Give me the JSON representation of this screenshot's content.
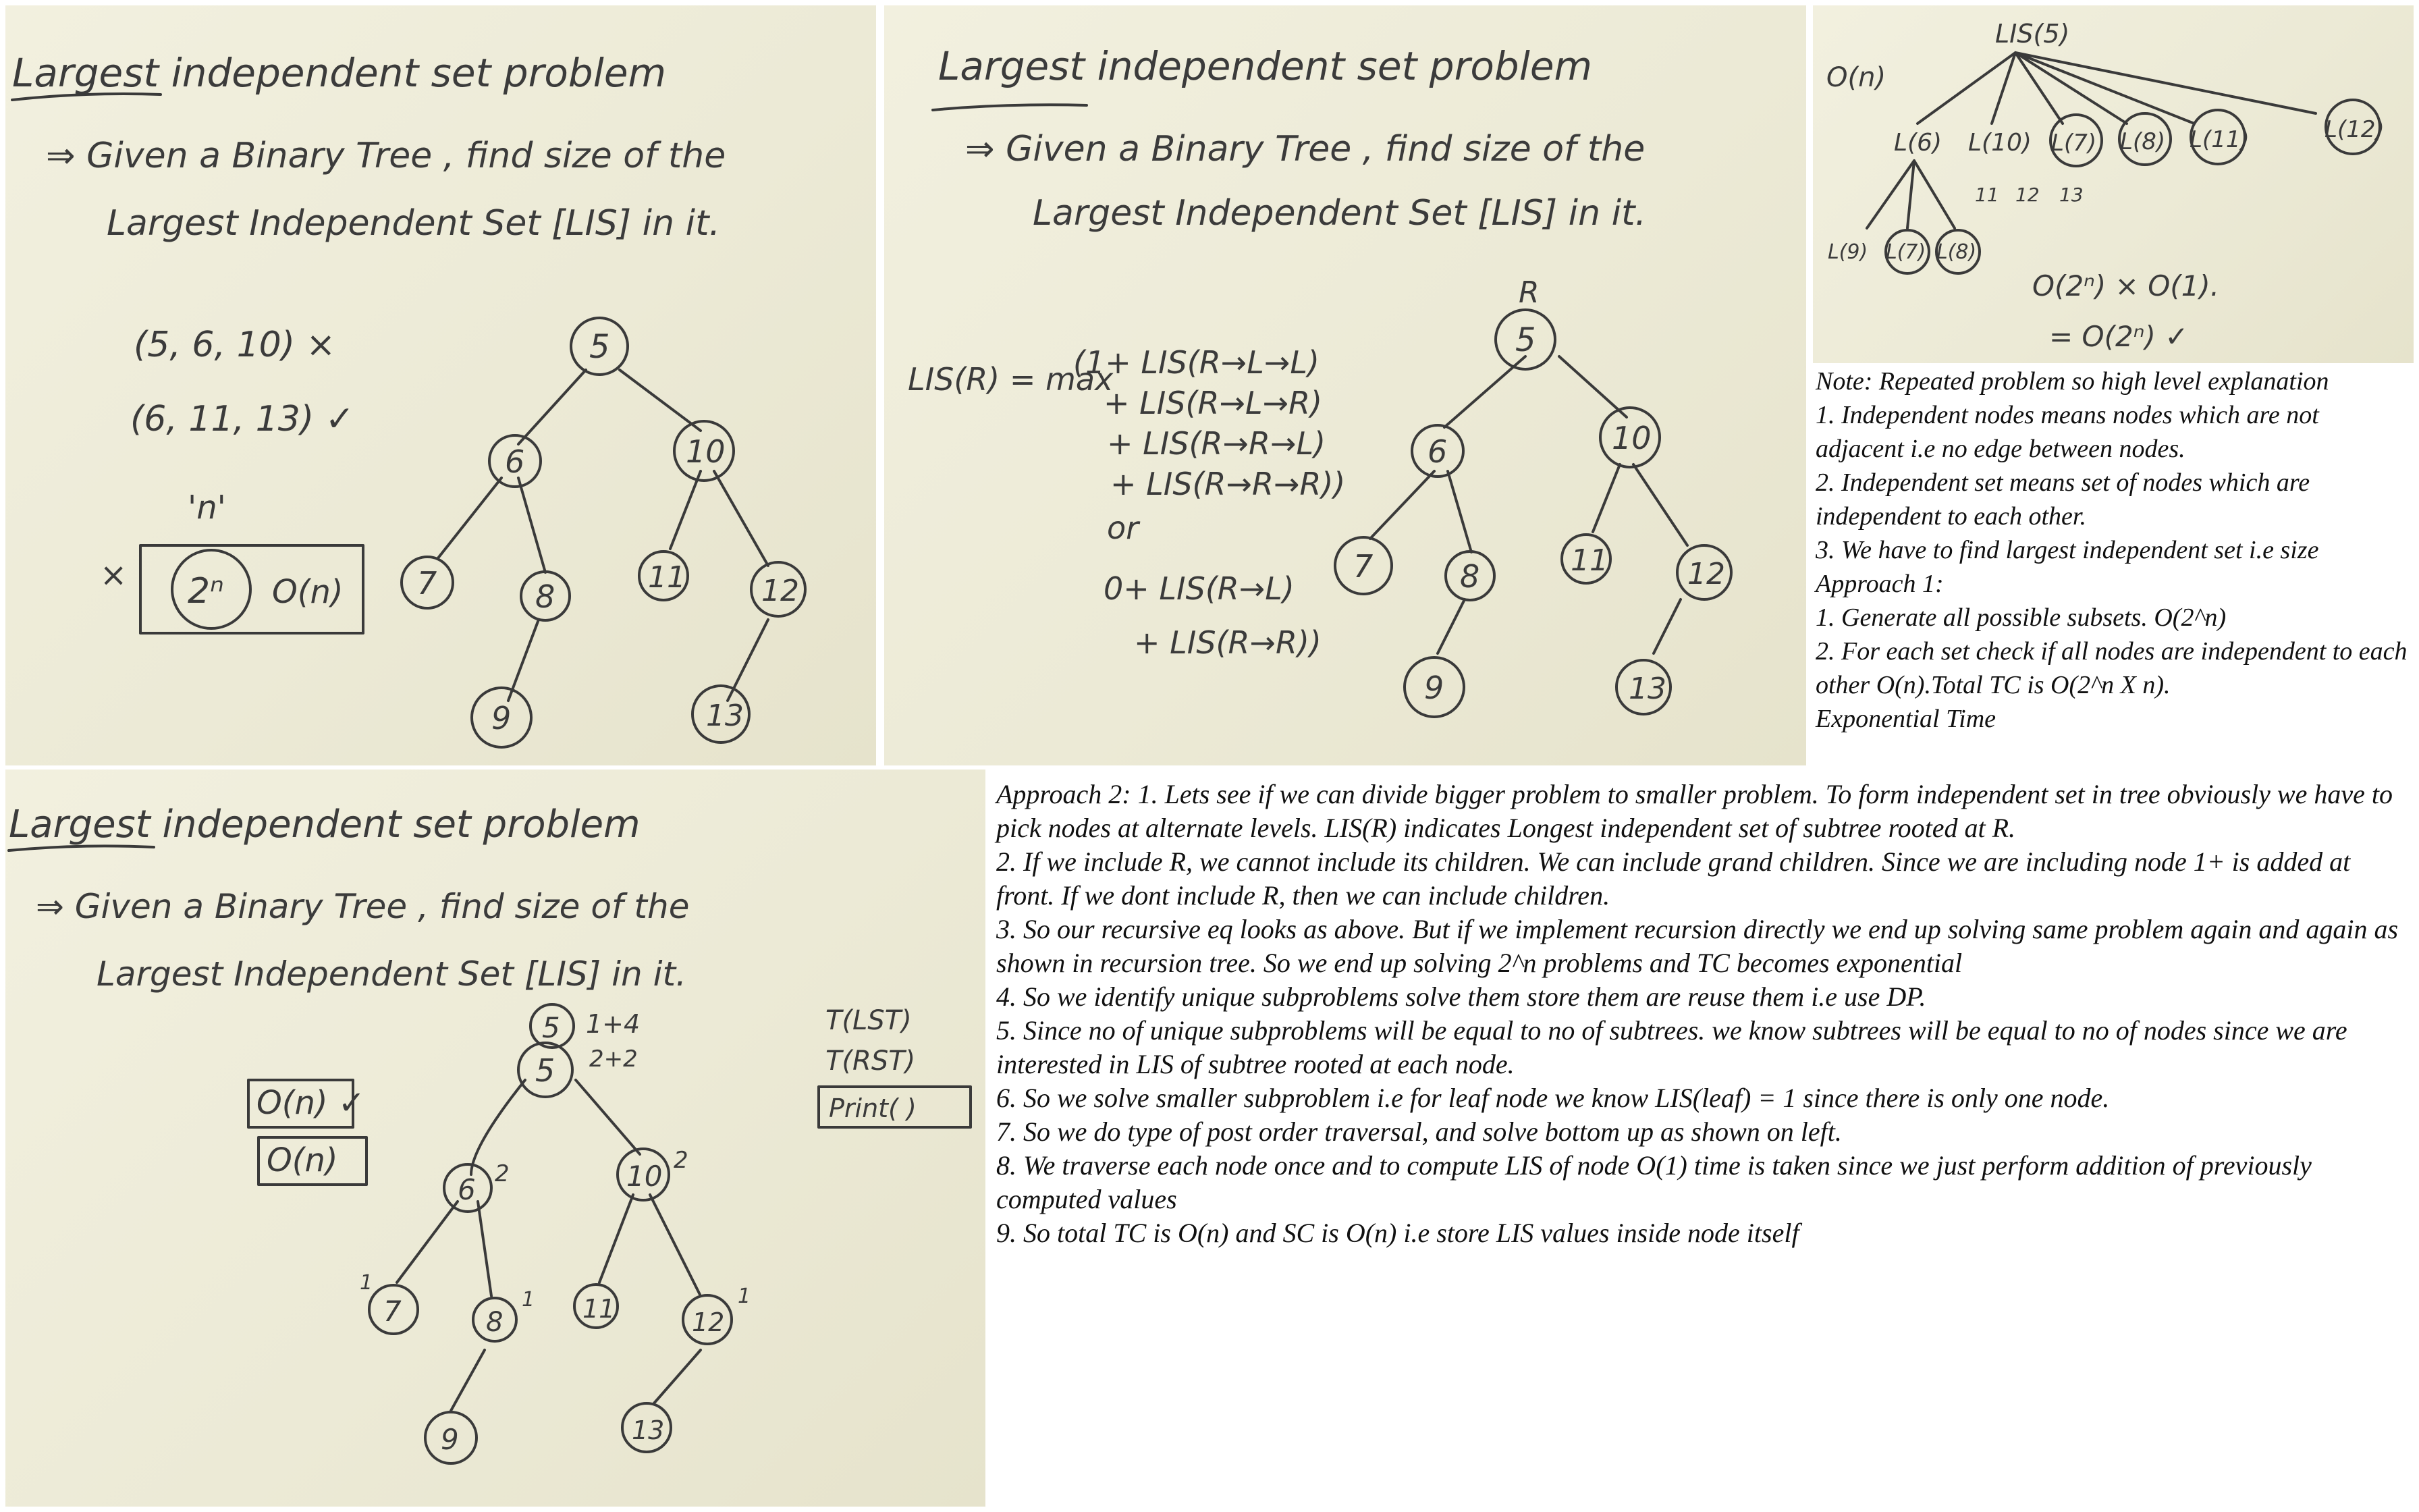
{
  "board": {
    "title": "Largest independent set problem",
    "line1": "⇒ Given a Binary Tree , find size of the",
    "line2": "Largest Independent Set [LIS] in it."
  },
  "panel1": {
    "set_a": "(5, 6, 10) ×",
    "set_b": "(6, 11, 13) ✓",
    "n_label": "'n'",
    "cx1": "2ⁿ",
    "cx2": "O(n)",
    "cross": "×",
    "tree_nodes": [
      "5",
      "6",
      "10",
      "7",
      "8",
      "11",
      "12",
      "9",
      "13"
    ]
  },
  "panel2": {
    "root_label": "R",
    "eq_lhs": "LIS(R) = max",
    "eq_lines": [
      "(1+ LIS(R→L→L)",
      "+ LIS(R→L→R)",
      "+ LIS(R→R→L)",
      "+ LIS(R→R→R))",
      "or",
      "0+ LIS(R→L)",
      "+ LIS(R→R))"
    ],
    "tree_nodes": [
      "5",
      "6",
      "10",
      "7",
      "8",
      "11",
      "12",
      "9",
      "13"
    ]
  },
  "panel3": {
    "root": "LIS(5)",
    "on": "O(n)",
    "children": [
      "L(6)",
      "L(10)",
      "L(7)",
      "L(8)",
      "L(11)",
      "L(12)"
    ],
    "grand": [
      "L(9)",
      "L(7)",
      "L(8)"
    ],
    "numbers": [
      "11",
      "12",
      "13"
    ],
    "cx1": "O(2ⁿ) × O(1).",
    "cx2": "= O(2ⁿ) ✓"
  },
  "panel4": {
    "cx1": "O(n) ✓",
    "cx2": "O(n)",
    "t1": "T(LST)",
    "t2": "T(RST)",
    "t3": "Print( )",
    "root_top": "5",
    "root_sum1": "1+4",
    "root_sum2": "2+2",
    "tree_nodes": [
      "5",
      "6",
      "10",
      "7",
      "8",
      "11",
      "12",
      "9",
      "13"
    ],
    "counts": [
      "2",
      "2",
      "1",
      "1",
      "1"
    ]
  },
  "note1": [
    "Note: Repeated problem so high level explanation",
    "1. Independent nodes means nodes which are not adjacent i.e no edge between nodes.",
    "2. Independent set means set of nodes which are independent to each other.",
    "3. We have to find largest independent set i.e size",
    "Approach 1:",
    "1. Generate all possible subsets. O(2^n)",
    "2. For each set check if all nodes are independent to each other O(n).Total TC is O(2^n X n).",
    "Exponential Time"
  ],
  "note2": [
    "Approach 2: 1. Lets see if we can divide bigger problem to smaller problem. To form independent set in tree obviously we have to pick nodes at alternate levels. LIS(R) indicates Longest independent set of subtree rooted at R.",
    "2. If we include R, we cannot include its children. We can include grand children. Since we are including node 1+ is added at front. If we dont include R, then we can include children.",
    "3. So our recursive eq looks as above. But if we implement recursion directly we end up solving same problem again and again as shown in recursion tree. So we end up solving 2^n problems and TC becomes exponential",
    "4. So we identify unique subproblems solve them store them are reuse them i.e use DP.",
    "5. Since no of unique subproblems will be equal to no of subtrees. we know subtrees will be equal to no of nodes since we are interested in LIS of subtree rooted at each node.",
    "6. So we solve smaller subproblem i.e for leaf node we know LIS(leaf) = 1 since there is only one node.",
    "7. So we do type of post order traversal, and solve bottom up as shown on left.",
    "8. We traverse each node once and to compute LIS of node O(1) time is taken since we just perform addition of previously computed values",
    "9. So total TC is O(n) and SC is O(n) i.e store LIS values inside node itself"
  ]
}
